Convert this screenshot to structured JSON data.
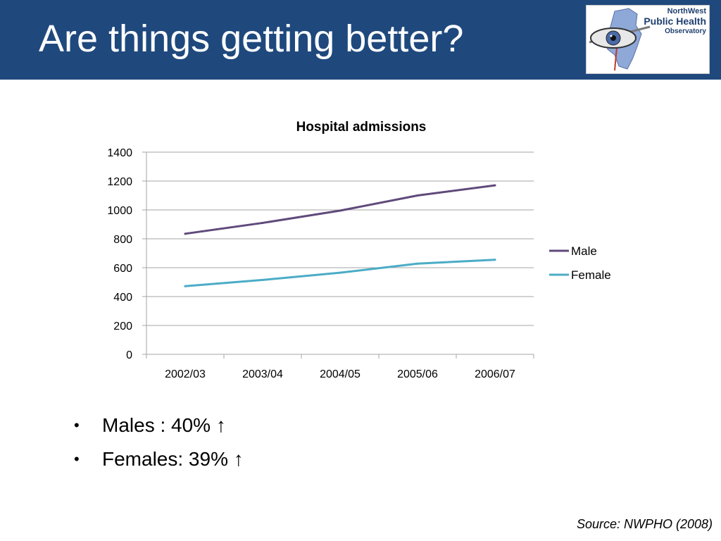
{
  "slide": {
    "title": "Are things getting better?",
    "bullets": [
      "Males : 40% ↑",
      "Females: 39% ↑"
    ],
    "source": "Source: NWPHO (2008)"
  },
  "logo": {
    "line1": "NorthWest",
    "line2": "Public Health",
    "line3": "Observatory",
    "icon": "eye-map-icon"
  },
  "colors": {
    "header_bg": "#1f497d",
    "male": "#604a7b",
    "female": "#4bacc6",
    "grid": "#a6a6a6"
  },
  "chart_data": {
    "type": "line",
    "title": "Hospital admissions",
    "xlabel": "",
    "ylabel": "",
    "categories": [
      "2002/03",
      "2003/04",
      "2004/05",
      "2005/06",
      "2006/07"
    ],
    "series": [
      {
        "name": "Male",
        "values": [
          835,
          910,
          995,
          1100,
          1170
        ],
        "color": "#604a7b"
      },
      {
        "name": "Female",
        "values": [
          472,
          515,
          565,
          628,
          655
        ],
        "color": "#4bacc6"
      }
    ],
    "ylim": [
      0,
      1400
    ],
    "yticks": [
      0,
      200,
      400,
      600,
      800,
      1000,
      1200,
      1400
    ],
    "grid": true,
    "legend": "right"
  }
}
